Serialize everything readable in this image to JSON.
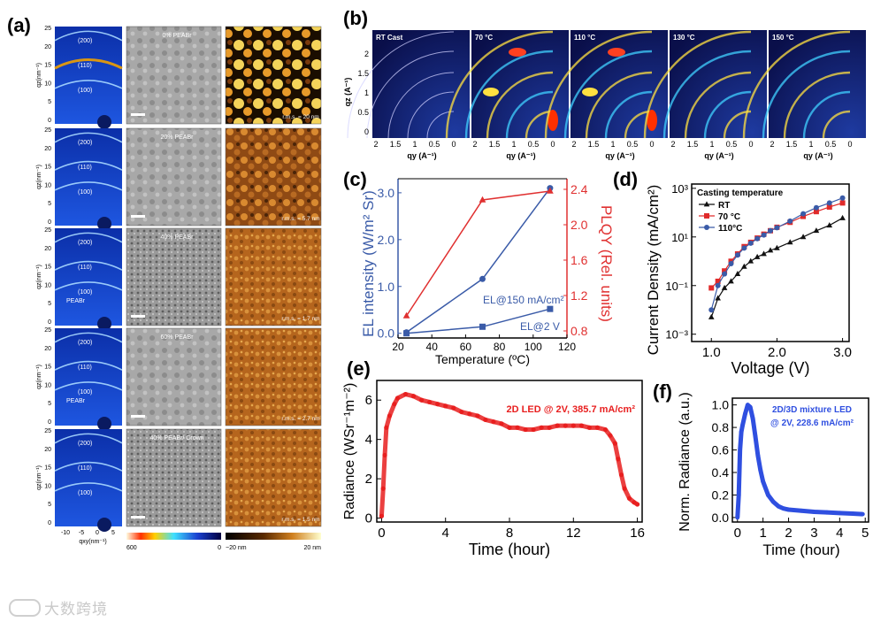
{
  "panel_labels": {
    "a": "(a)",
    "b": "(b)",
    "c": "(c)",
    "d": "(d)",
    "e": "(e)",
    "f": "(f)"
  },
  "panel_a": {
    "rows": [
      {
        "pct_label": "0% PEABr",
        "rms": "r.m.s. = 20 nm",
        "rings": [
          "(200)",
          "(110)",
          "(100)"
        ],
        "extra": ""
      },
      {
        "pct_label": "20% PEABr",
        "rms": "r.m.s. = 5.7 nm",
        "rings": [
          "(200)",
          "(110)",
          "(100)"
        ],
        "extra": ""
      },
      {
        "pct_label": "40% PEABr",
        "rms": "r.m.s. = 1.7 nm",
        "rings": [
          "(200)",
          "(110)",
          "(100)"
        ],
        "extra": "PEABr"
      },
      {
        "pct_label": "60% PEABr",
        "rms": "r.m.s. = 2.7 nm",
        "rings": [
          "(200)",
          "(110)",
          "(100)"
        ],
        "extra": "PEABr"
      },
      {
        "pct_label": "40% PEABr/ Crown",
        "rms": "r.m.s. = 1.5 nm",
        "rings": [
          "(200)",
          "(110)",
          "(100)"
        ],
        "extra": ""
      }
    ],
    "y_label": "qz(nm⁻¹)",
    "y_ticks": [
      "25",
      "20",
      "15",
      "10",
      "5",
      "0"
    ],
    "x_ticks": [
      "-10",
      "-5",
      "0",
      "5"
    ],
    "x_label": "qxy(nm⁻¹)",
    "cbar1": {
      "left": "600",
      "right": "0"
    },
    "cbar2": {
      "left": "−20 nm",
      "right": "20 nm"
    }
  },
  "panel_b": {
    "titles": [
      "RT Cast",
      "70 °C",
      "110 °C",
      "130 °C",
      "150 °C"
    ],
    "y_ticks": [
      "2",
      "1.5",
      "1",
      "0.5",
      "0"
    ],
    "y_label": "qz (A⁻¹)",
    "x_ticks": [
      "2",
      "1.5",
      "1",
      "0.5",
      "0"
    ],
    "x_label": "qy (A⁻¹)"
  },
  "chart_data": [
    {
      "id": "c",
      "type": "line",
      "xlabel": "Temperature (ºC)",
      "ylabel": "EL intensity (W/m² Sr)",
      "y2label": "PLQY (Rel. units)",
      "xlim": [
        20,
        120
      ],
      "ylim": [
        -0.1,
        3.3
      ],
      "y2lim": [
        0.72,
        2.52
      ],
      "x_ticks": [
        20,
        40,
        60,
        80,
        100,
        120
      ],
      "y_ticks": [
        0.0,
        1.0,
        2.0,
        3.0
      ],
      "y_tick_labels": [
        "0.0",
        "1.0",
        "2.0",
        "3.0"
      ],
      "y2_ticks": [
        0.8,
        1.2,
        1.6,
        2.0,
        2.4
      ],
      "y2_tick_labels": [
        "0.8",
        "1.2",
        "1.6",
        "2.0",
        "2.4"
      ],
      "series": [
        {
          "name": "EL@150 mA/cm²",
          "axis": "left",
          "color": "#3a5ba8",
          "marker": "circle",
          "x": [
            25,
            70,
            110
          ],
          "values": [
            0.02,
            1.16,
            3.1
          ]
        },
        {
          "name": "EL@2 V",
          "axis": "left",
          "color": "#3a5ba8",
          "marker": "square",
          "x": [
            25,
            70,
            110
          ],
          "values": [
            0.0,
            0.14,
            0.52
          ]
        },
        {
          "name": "PLQY",
          "axis": "right",
          "color": "#e03030",
          "marker": "triangle",
          "x": [
            25,
            70,
            110
          ],
          "values": [
            0.97,
            2.28,
            2.38
          ]
        }
      ]
    },
    {
      "id": "d",
      "type": "line",
      "yscale": "log",
      "title": "Casting temperature",
      "xlabel": "Voltage (V)",
      "ylabel": "Current Density (mA/cm²)",
      "xlim": [
        0.7,
        3.1
      ],
      "ylim": [
        0.0005,
        1500
      ],
      "x_ticks": [
        1.0,
        2.0,
        3.0
      ],
      "x_tick_labels": [
        "1.0",
        "2.0",
        "3.0"
      ],
      "y_tick_labels": [
        "10⁻³",
        "10⁻¹",
        "10¹",
        "10³"
      ],
      "y_ticks": [
        0.001,
        0.1,
        10,
        1000
      ],
      "series": [
        {
          "name": "RT",
          "color": "#111111",
          "marker": "triangle",
          "x": [
            1.0,
            1.1,
            1.2,
            1.3,
            1.4,
            1.5,
            1.6,
            1.7,
            1.8,
            1.9,
            2.0,
            2.2,
            2.4,
            2.6,
            2.8,
            3.0
          ],
          "values": [
            0.005,
            0.03,
            0.08,
            0.15,
            0.3,
            0.6,
            1.0,
            1.5,
            2.0,
            2.8,
            3.5,
            6,
            10,
            18,
            30,
            60
          ]
        },
        {
          "name": "70 °C",
          "color": "#e02a2a",
          "marker": "square",
          "x": [
            1.0,
            1.1,
            1.2,
            1.3,
            1.4,
            1.5,
            1.6,
            1.7,
            1.8,
            1.9,
            2.0,
            2.2,
            2.4,
            2.6,
            2.8,
            3.0
          ],
          "values": [
            0.08,
            0.15,
            0.4,
            1.0,
            2.0,
            4.0,
            6.0,
            9.0,
            13,
            18,
            25,
            40,
            70,
            110,
            170,
            250
          ]
        },
        {
          "name": "110°C",
          "color": "#3a5ba8",
          "marker": "circle",
          "x": [
            1.0,
            1.1,
            1.2,
            1.3,
            1.4,
            1.5,
            1.6,
            1.7,
            1.8,
            1.9,
            2.0,
            2.2,
            2.4,
            2.6,
            2.8,
            3.0
          ],
          "values": [
            0.01,
            0.1,
            0.3,
            0.8,
            1.8,
            3.5,
            5.5,
            8.5,
            12,
            18,
            24,
            45,
            90,
            160,
            250,
            400
          ]
        }
      ]
    },
    {
      "id": "e",
      "type": "scatter",
      "annotation": "2D LED @ 2V, 385.7 mA/cm²",
      "xlabel": "Time (hour)",
      "ylabel": "Radiance (WSr⁻¹m⁻²)",
      "xlim": [
        -0.3,
        16.3
      ],
      "ylim": [
        -0.2,
        7.0
      ],
      "x_ticks": [
        0,
        4,
        8,
        12,
        16
      ],
      "y_ticks": [
        0,
        2,
        4,
        6
      ],
      "color": "#e81f1f",
      "x": [
        0,
        0.1,
        0.2,
        0.3,
        0.5,
        0.8,
        1.0,
        1.5,
        2.0,
        2.5,
        3.0,
        3.5,
        4.0,
        4.5,
        5.0,
        5.5,
        6.0,
        6.5,
        7.0,
        7.5,
        8.0,
        8.5,
        9.0,
        9.5,
        10.0,
        10.5,
        11.0,
        11.5,
        12.0,
        12.5,
        13.0,
        13.5,
        14.0,
        14.3,
        14.6,
        14.8,
        15.0,
        15.2,
        15.5,
        15.8,
        16.0
      ],
      "values": [
        0.1,
        1.5,
        3.2,
        4.6,
        5.2,
        5.8,
        6.1,
        6.3,
        6.2,
        6.0,
        5.9,
        5.8,
        5.7,
        5.6,
        5.4,
        5.3,
        5.2,
        5.0,
        4.9,
        4.8,
        4.6,
        4.6,
        4.5,
        4.5,
        4.6,
        4.6,
        4.7,
        4.7,
        4.7,
        4.7,
        4.6,
        4.6,
        4.5,
        4.2,
        3.8,
        3.0,
        2.2,
        1.5,
        1.0,
        0.8,
        0.7
      ]
    },
    {
      "id": "f",
      "type": "scatter",
      "annotation": [
        "2D/3D mixture LED",
        "@ 2V, 228.6 mA/cm²"
      ],
      "xlabel": "Time (hour)",
      "ylabel": "Norm. Radiance (a.u.)",
      "xlim": [
        -0.2,
        5.2
      ],
      "ylim": [
        -0.04,
        1.06
      ],
      "x_ticks": [
        0,
        1,
        2,
        3,
        4,
        5
      ],
      "y_ticks": [
        0.0,
        0.2,
        0.4,
        0.6,
        0.8,
        1.0
      ],
      "y_tick_labels": [
        "0.0",
        "0.2",
        "0.4",
        "0.6",
        "0.8",
        "1.0"
      ],
      "color": "#2f4fe0",
      "x": [
        0,
        0.05,
        0.1,
        0.15,
        0.2,
        0.3,
        0.4,
        0.5,
        0.6,
        0.7,
        0.8,
        0.9,
        1.0,
        1.2,
        1.4,
        1.6,
        1.8,
        2.0,
        2.5,
        3.0,
        3.5,
        4.0,
        4.5,
        4.9
      ],
      "values": [
        0.0,
        0.2,
        0.6,
        0.76,
        0.82,
        0.92,
        1.0,
        0.98,
        0.88,
        0.72,
        0.55,
        0.42,
        0.32,
        0.2,
        0.14,
        0.1,
        0.08,
        0.07,
        0.06,
        0.05,
        0.045,
        0.04,
        0.035,
        0.03
      ]
    }
  ],
  "watermark": "大数跨境"
}
